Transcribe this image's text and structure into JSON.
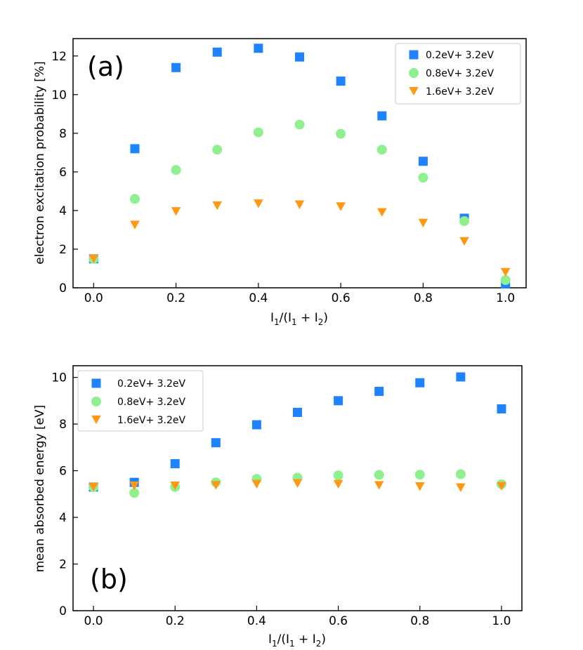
{
  "chart_data": [
    {
      "type": "scatter",
      "panel_label": "(a)",
      "xlabel_main": "I",
      "xlabel_sub1": "1",
      "xlabel_mid": "/(I",
      "xlabel_sub2": "1",
      "xlabel_plus": " + I",
      "xlabel_sub3": "2",
      "xlabel_end": ")",
      "ylabel": "electron excitation probability [%]",
      "xlim": [
        -0.05,
        1.05
      ],
      "ylim": [
        0,
        12.9
      ],
      "xticks": [
        "0.0",
        "0.2",
        "0.4",
        "0.6",
        "0.8",
        "1.0"
      ],
      "yticks": [
        "0",
        "2",
        "4",
        "6",
        "8",
        "10",
        "12"
      ],
      "legend_position": "top-right",
      "x": [
        0.0,
        0.1,
        0.2,
        0.3,
        0.4,
        0.5,
        0.6,
        0.7,
        0.8,
        0.9,
        1.0
      ],
      "series": [
        {
          "name": "0.2eV+ 3.2eV",
          "marker": "square",
          "color": "#1f83ff",
          "values": [
            1.5,
            7.2,
            11.4,
            12.2,
            12.4,
            11.95,
            10.7,
            8.9,
            6.55,
            3.6,
            0.2
          ]
        },
        {
          "name": "0.8eV+ 3.2eV",
          "marker": "circle",
          "color": "#8ff08f",
          "values": [
            1.5,
            4.6,
            6.1,
            7.15,
            8.05,
            8.45,
            7.97,
            7.15,
            5.7,
            3.45,
            0.4
          ]
        },
        {
          "name": "1.6eV+ 3.2eV",
          "marker": "triangle-down",
          "color": "#ff9913",
          "values": [
            1.5,
            3.25,
            3.95,
            4.25,
            4.35,
            4.3,
            4.2,
            3.9,
            3.35,
            2.4,
            0.8
          ]
        }
      ]
    },
    {
      "type": "scatter",
      "panel_label": "(b)",
      "xlabel_main": "I",
      "xlabel_sub1": "1",
      "xlabel_mid": "/(I",
      "xlabel_sub2": "1",
      "xlabel_plus": " + I",
      "xlabel_sub3": "2",
      "xlabel_end": ")",
      "ylabel": "mean absorbed energy [eV]",
      "xlim": [
        -0.05,
        1.05
      ],
      "ylim": [
        0,
        10.5
      ],
      "xticks": [
        "0.0",
        "0.2",
        "0.4",
        "0.6",
        "0.8",
        "1.0"
      ],
      "yticks": [
        "0",
        "2",
        "4",
        "6",
        "8",
        "10"
      ],
      "legend_position": "top-left",
      "x": [
        0.0,
        0.1,
        0.2,
        0.3,
        0.4,
        0.5,
        0.6,
        0.7,
        0.8,
        0.9,
        1.0
      ],
      "series": [
        {
          "name": "0.2eV+ 3.2eV",
          "marker": "square",
          "color": "#1f83ff",
          "values": [
            5.3,
            5.5,
            6.3,
            7.2,
            7.97,
            8.5,
            9.0,
            9.4,
            9.77,
            10.02,
            8.65
          ]
        },
        {
          "name": "0.8eV+ 3.2eV",
          "marker": "circle",
          "color": "#8ff08f",
          "values": [
            5.3,
            5.05,
            5.3,
            5.5,
            5.65,
            5.7,
            5.8,
            5.82,
            5.83,
            5.85,
            5.42
          ]
        },
        {
          "name": "1.6eV+ 3.2eV",
          "marker": "triangle-down",
          "color": "#ff9913",
          "values": [
            5.3,
            5.35,
            5.35,
            5.37,
            5.42,
            5.45,
            5.42,
            5.37,
            5.32,
            5.27,
            5.33
          ]
        }
      ]
    }
  ]
}
